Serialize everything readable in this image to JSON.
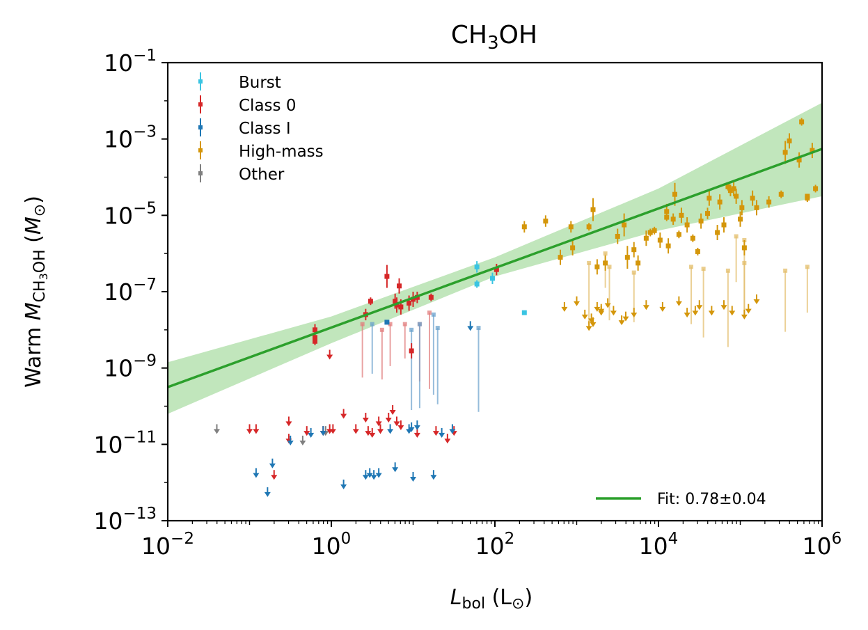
{
  "chart_data": {
    "type": "scatter",
    "title_main": "CH",
    "title_sub": "3",
    "title_tail": "OH",
    "xlabel": {
      "main": "L",
      "sub": "bol",
      "tail": " (L",
      "sun": "⊙",
      "close": ")"
    },
    "ylabel": {
      "pre": "Warm ",
      "main": "M",
      "sub1": "CH",
      "sub2": "3",
      "sub3": "OH",
      "mid": " (",
      "m": "M",
      "sun": "⊙",
      "close": ")"
    },
    "xscale": "log",
    "yscale": "log",
    "xlim_exp": [
      -2,
      6
    ],
    "ylim_exp": [
      -13,
      -1
    ],
    "xticks": [
      {
        "base": "10",
        "exp": "−2",
        "e": -2
      },
      {
        "base": "10",
        "exp": "0",
        "e": 0
      },
      {
        "base": "10",
        "exp": "2",
        "e": 2
      },
      {
        "base": "10",
        "exp": "4",
        "e": 4
      },
      {
        "base": "10",
        "exp": "6",
        "e": 6
      }
    ],
    "yticks": [
      {
        "base": "10",
        "exp": "−1",
        "e": -1
      },
      {
        "base": "10",
        "exp": "−3",
        "e": -3
      },
      {
        "base": "10",
        "exp": "−5",
        "e": -5
      },
      {
        "base": "10",
        "exp": "−7",
        "e": -7
      },
      {
        "base": "10",
        "exp": "−9",
        "e": -9
      },
      {
        "base": "10",
        "exp": "−11",
        "e": -11
      },
      {
        "base": "10",
        "exp": "−13",
        "e": -13
      }
    ],
    "legend": [
      {
        "label": "Burst",
        "color": "#3ac4e2"
      },
      {
        "label": "Class 0",
        "color": "#d62728"
      },
      {
        "label": "Class I",
        "color": "#1f77b4"
      },
      {
        "label": "High-mass",
        "color": "#d4960a"
      },
      {
        "label": "Other",
        "color": "#7f7f7f"
      }
    ],
    "fit": {
      "label": "Fit: 0.78±0.04",
      "slope": 0.78,
      "intercept": -7.94,
      "color": "#2ca02c",
      "band_color": "#a6dba0",
      "band": [
        [
          -2,
          -8.85,
          -10.2
        ],
        [
          0,
          -7.65,
          -8.35
        ],
        [
          2,
          -6.1,
          -6.6
        ],
        [
          4,
          -4.3,
          -5.4
        ],
        [
          6,
          -2.05,
          -4.5
        ]
      ]
    },
    "series": [
      {
        "name": "Burst",
        "color": "#3ac4e2",
        "points": [
          [
            1.78,
            -6.35,
            0.15,
            0.15
          ],
          [
            1.78,
            -6.8,
            0.1,
            0.1
          ],
          [
            1.97,
            -6.65,
            0.15,
            0.15
          ],
          [
            2.36,
            -7.55,
            0,
            0
          ]
        ]
      },
      {
        "name": "Class 0",
        "color": "#d62728",
        "points": [
          [
            -0.2,
            -8.0,
            0.15,
            0.15
          ],
          [
            -0.2,
            -8.2,
            0.1,
            0.1
          ],
          [
            -0.2,
            -8.3,
            0.1,
            0.1
          ],
          [
            0.42,
            -7.6,
            0.15,
            0.15
          ],
          [
            0.48,
            -7.25,
            0.1,
            0.1
          ],
          [
            0.68,
            -6.6,
            0.3,
            0.3
          ],
          [
            0.78,
            -7.25,
            0.2,
            0.2
          ],
          [
            0.8,
            -7.35,
            0.2,
            0.2
          ],
          [
            0.83,
            -6.85,
            0.2,
            0.2
          ],
          [
            0.85,
            -7.4,
            0.2,
            0.2
          ],
          [
            0.95,
            -7.3,
            0.2,
            0.2
          ],
          [
            1.0,
            -7.2,
            0.2,
            0.2
          ],
          [
            1.05,
            -7.15,
            0.15,
            0.15
          ],
          [
            0.98,
            -8.55,
            0.2,
            0.2
          ],
          [
            1.22,
            -7.15,
            0.1,
            0.1
          ],
          [
            2.02,
            -6.42,
            0.15,
            0.15
          ]
        ]
      },
      {
        "name": "Class I",
        "color": "#1f77b4",
        "points": [
          [
            0.68,
            -7.8,
            0,
            0
          ]
        ]
      },
      {
        "name": "High-mass",
        "color": "#d4960a",
        "points": [
          [
            2.36,
            -5.3,
            0.15,
            0.15
          ],
          [
            2.62,
            -5.15,
            0.15,
            0.15
          ],
          [
            2.93,
            -5.3,
            0.15,
            0.15
          ],
          [
            2.8,
            -6.1,
            0.2,
            0.2
          ],
          [
            2.95,
            -5.85,
            0.2,
            0.2
          ],
          [
            3.15,
            -5.3,
            0.1,
            0.1
          ],
          [
            3.2,
            -4.85,
            0.3,
            0.3
          ],
          [
            3.25,
            -6.35,
            0.2,
            0.2
          ],
          [
            3.35,
            -6.25,
            0.2,
            0.2
          ],
          [
            3.5,
            -5.55,
            0.2,
            0.2
          ],
          [
            3.58,
            -5.25,
            0.3,
            0.3
          ],
          [
            3.62,
            -6.1,
            0.3,
            0.3
          ],
          [
            3.7,
            -5.9,
            0.2,
            0.2
          ],
          [
            3.75,
            -6.25,
            0.2,
            0.2
          ],
          [
            3.85,
            -5.6,
            0.2,
            0.2
          ],
          [
            3.9,
            -5.45,
            0.1,
            0.1
          ],
          [
            3.95,
            -5.4,
            0.1,
            0.1
          ],
          [
            4.1,
            -5.05,
            0.1,
            0.1
          ],
          [
            4.02,
            -5.65,
            0.2,
            0.2
          ],
          [
            4.12,
            -5.8,
            0.2,
            0.2
          ],
          [
            4.18,
            -5.1,
            0.15,
            0.15
          ],
          [
            4.2,
            -4.45,
            0.3,
            0.3
          ],
          [
            4.25,
            -5.5,
            0.1,
            0.1
          ],
          [
            4.28,
            -5.0,
            0.2,
            0.2
          ],
          [
            4.1,
            -4.9,
            0.2,
            0.2
          ],
          [
            4.35,
            -5.25,
            0.2,
            0.2
          ],
          [
            4.42,
            -5.6,
            0.1,
            0.1
          ],
          [
            4.48,
            -5.95,
            0.1,
            0.1
          ],
          [
            4.52,
            -5.15,
            0.2,
            0.2
          ],
          [
            4.6,
            -4.95,
            0.15,
            0.15
          ],
          [
            4.62,
            -4.55,
            0.2,
            0.2
          ],
          [
            4.72,
            -5.45,
            0.2,
            0.2
          ],
          [
            4.75,
            -4.65,
            0.2,
            0.2
          ],
          [
            4.8,
            -5.25,
            0.2,
            0.2
          ],
          [
            4.85,
            -4.25,
            0.1,
            0.1
          ],
          [
            4.88,
            -4.35,
            0.15,
            0.15
          ],
          [
            4.92,
            -4.3,
            0.2,
            0.2
          ],
          [
            4.95,
            -4.5,
            0.2,
            0.2
          ],
          [
            5.0,
            -5.1,
            0.2,
            0.2
          ],
          [
            5.02,
            -4.8,
            0.2,
            0.2
          ],
          [
            5.05,
            -5.85,
            0.2,
            0.2
          ],
          [
            5.15,
            -4.55,
            0.2,
            0.2
          ],
          [
            5.2,
            -4.8,
            0.2,
            0.2
          ],
          [
            5.35,
            -4.65,
            0.15,
            0.15
          ],
          [
            5.5,
            -4.45,
            0.1,
            0.1
          ],
          [
            5.55,
            -3.35,
            0.3,
            0.3
          ],
          [
            5.6,
            -3.05,
            0.2,
            0.2
          ],
          [
            5.72,
            -3.55,
            0.2,
            0.2
          ],
          [
            5.75,
            -2.55,
            0.1,
            0.1
          ],
          [
            5.82,
            -4.55,
            0.1,
            0.1
          ],
          [
            5.82,
            -4.5,
            0,
            0
          ],
          [
            5.88,
            -3.3,
            0.2,
            0.2
          ],
          [
            5.92,
            -4.3,
            0.1,
            0.1
          ]
        ]
      },
      {
        "name": "Other",
        "color": "#7f7f7f",
        "points": []
      }
    ],
    "faded_points": [
      {
        "series": "Class 0",
        "color": "#e17c7c",
        "points": [
          [
            0.38,
            -7.85,
            1.4
          ],
          [
            0.9,
            -7.85,
            0.9
          ],
          [
            1.08,
            -7.85,
            1.5
          ],
          [
            0.72,
            -7.85,
            1.1
          ],
          [
            0.62,
            -8.0,
            1.3
          ],
          [
            1.2,
            -7.55,
            2.0
          ]
        ]
      },
      {
        "series": "Class I",
        "color": "#6aa1cc",
        "points": [
          [
            0.5,
            -7.85,
            1.3
          ],
          [
            0.98,
            -8.0,
            2.1
          ],
          [
            1.08,
            -7.85,
            2.2
          ],
          [
            1.3,
            -7.95,
            2.0
          ],
          [
            1.8,
            -7.95,
            2.2
          ],
          [
            1.25,
            -7.6,
            2.1
          ]
        ]
      },
      {
        "series": "High-mass",
        "color": "#e3bd6a",
        "points": [
          [
            3.15,
            -6.25,
            1.6
          ],
          [
            3.4,
            -6.35,
            1.4
          ],
          [
            3.7,
            -6.5,
            1.3
          ],
          [
            4.4,
            -6.35,
            1.5
          ],
          [
            4.55,
            -6.4,
            1.8
          ],
          [
            4.85,
            -6.45,
            2.0
          ],
          [
            5.05,
            -5.65,
            2.0
          ],
          [
            5.55,
            -6.45,
            1.6
          ],
          [
            5.82,
            -6.35,
            1.2
          ],
          [
            3.35,
            -6.0,
            0.9
          ],
          [
            4.95,
            -5.55,
            1.2
          ],
          [
            5.05,
            -6.25,
            1.4
          ]
        ]
      }
    ],
    "upper_limits": [
      {
        "series": "Other",
        "color": "#7f7f7f",
        "points": [
          [
            -1.4,
            -10.6
          ],
          [
            -0.07,
            -10.65
          ],
          [
            -0.35,
            -10.9
          ]
        ]
      },
      {
        "series": "Class 0",
        "color": "#d62728",
        "points": [
          [
            -1.0,
            -10.6
          ],
          [
            -0.92,
            -10.6
          ],
          [
            -0.52,
            -10.4
          ],
          [
            -0.52,
            -10.85
          ],
          [
            -0.3,
            -10.65
          ],
          [
            -0.1,
            -10.65
          ],
          [
            -0.02,
            -10.6
          ],
          [
            0.02,
            -10.6
          ],
          [
            0.15,
            -10.2
          ],
          [
            0.3,
            -10.6
          ],
          [
            0.42,
            -10.3
          ],
          [
            0.45,
            -10.65
          ],
          [
            0.5,
            -10.7
          ],
          [
            0.6,
            -10.6
          ],
          [
            0.7,
            -10.3
          ],
          [
            0.75,
            -10.1
          ],
          [
            0.8,
            -10.4
          ],
          [
            0.85,
            -10.5
          ],
          [
            1.05,
            -10.7
          ],
          [
            1.28,
            -10.65
          ],
          [
            1.42,
            -10.85
          ],
          [
            1.5,
            -10.65
          ],
          [
            0.58,
            -10.4
          ],
          [
            -0.7,
            -11.8
          ],
          [
            -0.02,
            -8.65
          ]
        ]
      },
      {
        "series": "Class I",
        "color": "#1f77b4",
        "points": [
          [
            -0.92,
            -11.75
          ],
          [
            -0.78,
            -12.25
          ],
          [
            -0.72,
            -11.5
          ],
          [
            -0.5,
            -10.9
          ],
          [
            -0.25,
            -10.7
          ],
          [
            -0.1,
            -10.65
          ],
          [
            0.15,
            -12.05
          ],
          [
            0.42,
            -11.8
          ],
          [
            0.47,
            -11.75
          ],
          [
            0.52,
            -11.8
          ],
          [
            0.72,
            -10.6
          ],
          [
            0.95,
            -10.6
          ],
          [
            1.05,
            -10.5
          ],
          [
            1.35,
            -10.7
          ],
          [
            1.48,
            -10.6
          ],
          [
            1.25,
            -11.8
          ],
          [
            1.0,
            -11.85
          ],
          [
            0.78,
            -11.6
          ],
          [
            1.7,
            -7.9
          ],
          [
            0.58,
            -11.75
          ],
          [
            0.98,
            -10.55
          ]
        ]
      },
      {
        "series": "High-mass",
        "color": "#d4960a",
        "points": [
          [
            2.85,
            -7.4
          ],
          [
            3.0,
            -7.25
          ],
          [
            3.1,
            -7.6
          ],
          [
            3.18,
            -7.7
          ],
          [
            3.2,
            -7.8
          ],
          [
            3.25,
            -7.4
          ],
          [
            3.3,
            -7.5
          ],
          [
            3.38,
            -7.3
          ],
          [
            3.45,
            -7.5
          ],
          [
            3.55,
            -7.75
          ],
          [
            3.6,
            -7.65
          ],
          [
            3.7,
            -7.55
          ],
          [
            3.85,
            -7.35
          ],
          [
            4.05,
            -7.4
          ],
          [
            4.25,
            -7.25
          ],
          [
            4.35,
            -7.55
          ],
          [
            4.45,
            -7.5
          ],
          [
            4.5,
            -7.35
          ],
          [
            4.65,
            -7.5
          ],
          [
            4.8,
            -7.35
          ],
          [
            4.9,
            -7.5
          ],
          [
            5.1,
            -7.45
          ],
          [
            5.2,
            -7.2
          ],
          [
            5.05,
            -7.6
          ],
          [
            3.15,
            -7.9
          ],
          [
            3.3,
            -7.45
          ]
        ]
      }
    ]
  }
}
